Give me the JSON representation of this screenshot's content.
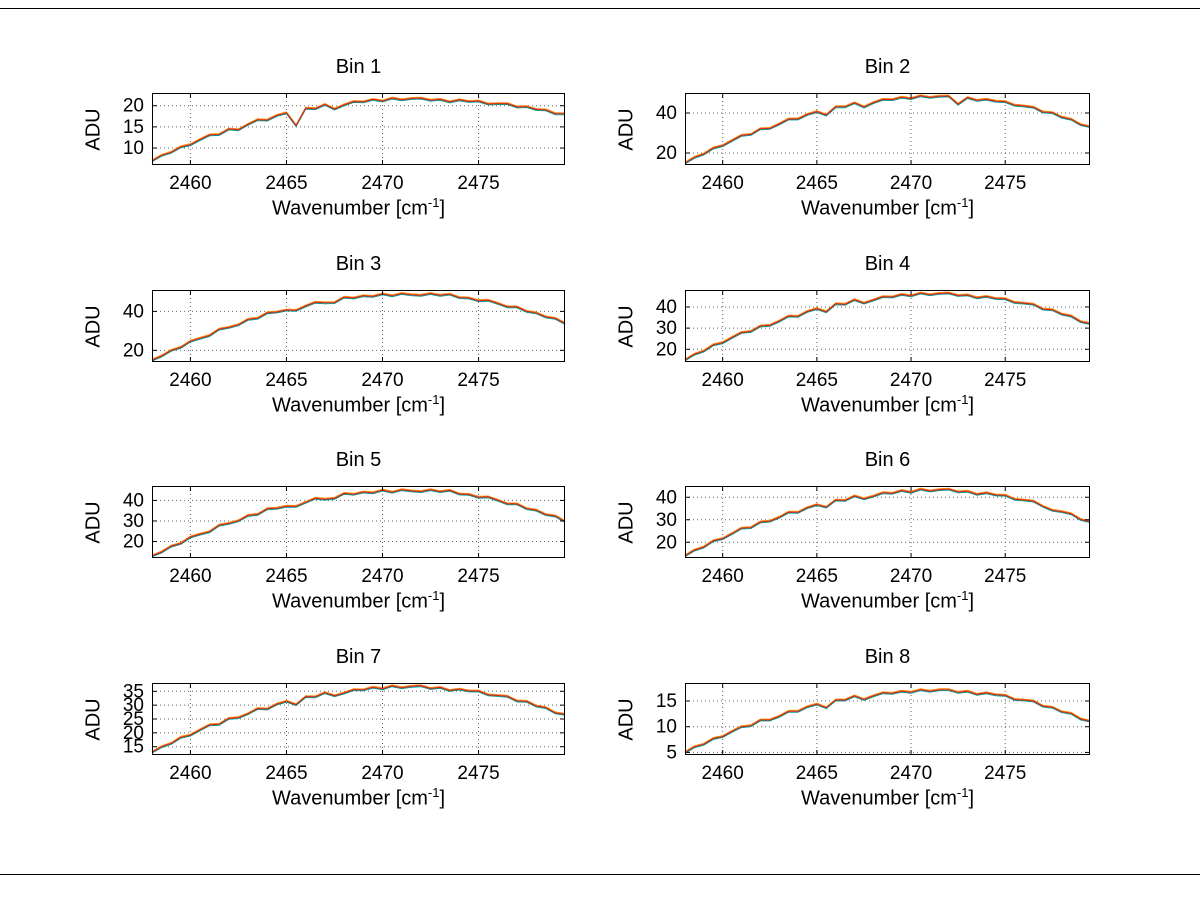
{
  "figure": {
    "background": "#ffffff",
    "border_color": "#000000"
  },
  "labels": {
    "ylabel": "ADU",
    "xlabel_main": "Wavenumber [cm",
    "xlabel_sup": "-1",
    "xlabel_close": "]"
  },
  "style": {
    "line_colors": [
      "#009988",
      "#ff8800",
      "#cc2222"
    ],
    "grid_color": "#666666",
    "axis_color": "#000000"
  },
  "chart_data": [
    {
      "type": "line",
      "title": "Bin 1",
      "xlabel": "Wavenumber [cm-1]",
      "ylabel": "ADU",
      "x_start": 2458,
      "x_step": 0.5,
      "xlim": [
        2458,
        2479.5
      ],
      "ylim": [
        6,
        23
      ],
      "xticks": [
        2460,
        2465,
        2470,
        2475
      ],
      "yticks": [
        10,
        15,
        20
      ],
      "grid": true,
      "legend": false,
      "values": [
        7.0,
        8.3,
        9.0,
        10.3,
        10.8,
        12.0,
        13.1,
        13.2,
        14.5,
        14.3,
        15.6,
        16.7,
        16.6,
        17.7,
        18.3,
        15.3,
        19.4,
        19.3,
        20.3,
        19.2,
        20.2,
        21.0,
        20.9,
        21.5,
        21.1,
        21.8,
        21.4,
        21.7,
        21.8,
        21.3,
        21.5,
        20.9,
        21.4,
        21.0,
        21.1,
        20.4,
        20.5,
        20.5,
        19.7,
        19.8,
        19.1,
        19.0,
        18.1,
        18.1
      ]
    },
    {
      "type": "line",
      "title": "Bin 2",
      "xlabel": "Wavenumber [cm-1]",
      "ylabel": "ADU",
      "x_start": 2458,
      "x_step": 0.5,
      "xlim": [
        2458,
        2479.5
      ],
      "ylim": [
        14,
        50
      ],
      "xticks": [
        2460,
        2465,
        2470,
        2475
      ],
      "yticks": [
        20,
        40
      ],
      "grid": true,
      "legend": false,
      "values": [
        15.0,
        17.8,
        19.5,
        22.5,
        23.7,
        26.3,
        28.8,
        29.3,
        32.1,
        32.3,
        34.5,
        37.0,
        37.0,
        39.3,
        40.7,
        39.0,
        43.1,
        43.1,
        45.1,
        43.0,
        45.2,
        46.8,
        46.7,
        47.9,
        47.2,
        48.6,
        47.8,
        48.4,
        48.5,
        44.4,
        47.7,
        46.3,
        46.9,
        45.9,
        45.7,
        43.9,
        43.5,
        42.9,
        40.5,
        40.2,
        37.9,
        36.9,
        34.2,
        33.2
      ]
    },
    {
      "type": "line",
      "title": "Bin 3",
      "xlabel": "Wavenumber [cm-1]",
      "ylabel": "ADU",
      "x_start": 2458,
      "x_step": 0.5,
      "xlim": [
        2458,
        2479.5
      ],
      "ylim": [
        14,
        51
      ],
      "xticks": [
        2460,
        2465,
        2470,
        2475
      ],
      "yticks": [
        20,
        40
      ],
      "grid": true,
      "legend": false,
      "values": [
        15.0,
        17.1,
        20.0,
        21.5,
        24.7,
        26.2,
        27.6,
        30.9,
        31.8,
        33.1,
        35.9,
        36.5,
        39.3,
        39.7,
        40.7,
        40.5,
        42.8,
        44.7,
        44.4,
        44.5,
        47.3,
        46.9,
        48.0,
        47.7,
        49.0,
        48.0,
        49.2,
        48.6,
        48.3,
        49.2,
        48.3,
        48.9,
        47.1,
        46.9,
        45.5,
        45.7,
        44.1,
        42.3,
        42.3,
        40.0,
        39.3,
        37.1,
        36.4,
        33.8
      ]
    },
    {
      "type": "line",
      "title": "Bin 4",
      "xlabel": "Wavenumber [cm-1]",
      "ylabel": "ADU",
      "x_start": 2458,
      "x_step": 0.5,
      "xlim": [
        2458,
        2479.5
      ],
      "ylim": [
        14,
        48
      ],
      "xticks": [
        2460,
        2465,
        2470,
        2475
      ],
      "yticks": [
        20,
        30,
        40
      ],
      "grid": true,
      "legend": false,
      "values": [
        15.0,
        17.7,
        19.2,
        22.1,
        23.1,
        25.6,
        28.0,
        28.4,
        31.0,
        31.3,
        33.3,
        35.7,
        35.6,
        37.9,
        39.2,
        37.7,
        41.5,
        41.3,
        43.4,
        41.8,
        43.3,
        44.9,
        44.7,
        45.9,
        45.2,
        46.6,
        45.8,
        46.4,
        46.6,
        45.4,
        45.7,
        44.3,
        45.0,
        44.0,
        43.9,
        42.1,
        41.8,
        41.3,
        39.0,
        38.7,
        36.6,
        35.7,
        33.1,
        32.2
      ]
    },
    {
      "type": "line",
      "title": "Bin 5",
      "xlabel": "Wavenumber [cm-1]",
      "ylabel": "ADU",
      "x_start": 2458,
      "x_step": 0.5,
      "xlim": [
        2458,
        2479.5
      ],
      "ylim": [
        12,
        47
      ],
      "xticks": [
        2460,
        2465,
        2470,
        2475
      ],
      "yticks": [
        20,
        30,
        40
      ],
      "grid": true,
      "legend": false,
      "values": [
        13.0,
        14.9,
        17.8,
        19.1,
        22.2,
        23.6,
        24.8,
        28.0,
        28.8,
        30.1,
        32.7,
        33.2,
        35.9,
        36.2,
        37.2,
        37.1,
        39.1,
        41.0,
        40.6,
        41.0,
        43.4,
        43.0,
        44.1,
        43.7,
        45.0,
        44.0,
        45.2,
        44.6,
        44.3,
        45.2,
        44.3,
        44.9,
        43.1,
        42.9,
        41.5,
        41.7,
        40.1,
        38.3,
        38.3,
        36.0,
        35.3,
        33.1,
        32.4,
        29.8
      ]
    },
    {
      "type": "line",
      "title": "Bin 6",
      "xlabel": "Wavenumber [cm-1]",
      "ylabel": "ADU",
      "x_start": 2458,
      "x_step": 0.5,
      "xlim": [
        2458,
        2479.5
      ],
      "ylim": [
        13,
        45
      ],
      "xticks": [
        2460,
        2465,
        2470,
        2475
      ],
      "yticks": [
        20,
        30,
        40
      ],
      "grid": true,
      "legend": false,
      "values": [
        14.0,
        16.5,
        17.9,
        20.7,
        21.6,
        23.9,
        26.3,
        26.5,
        29.0,
        29.4,
        31.1,
        33.4,
        33.3,
        35.4,
        36.7,
        35.6,
        38.8,
        38.6,
        40.6,
        39.3,
        40.5,
        42.0,
        41.8,
        43.0,
        42.2,
        43.6,
        42.8,
        43.4,
        43.6,
        42.4,
        42.7,
        41.3,
        42.0,
        41.0,
        40.9,
        39.1,
        38.8,
        38.3,
        36.0,
        34.2,
        33.6,
        32.7,
        30.1,
        29.2
      ]
    },
    {
      "type": "line",
      "title": "Bin 7",
      "xlabel": "Wavenumber [cm-1]",
      "ylabel": "ADU",
      "x_start": 2458,
      "x_step": 0.5,
      "xlim": [
        2458,
        2479.5
      ],
      "ylim": [
        12,
        38
      ],
      "xticks": [
        2460,
        2465,
        2470,
        2475
      ],
      "yticks": [
        15,
        20,
        25,
        30,
        35
      ],
      "grid": true,
      "legend": false,
      "values": [
        13.0,
        15.0,
        16.2,
        18.4,
        19.2,
        21.1,
        22.9,
        23.1,
        25.2,
        25.5,
        26.9,
        28.8,
        28.6,
        30.4,
        31.4,
        30.2,
        33.1,
        33.0,
        34.5,
        33.4,
        34.4,
        35.6,
        35.5,
        36.5,
        35.9,
        37.0,
        36.3,
        36.8,
        37.0,
        36.0,
        36.4,
        35.3,
        35.8,
        35.1,
        35.1,
        33.7,
        33.5,
        33.2,
        31.5,
        31.4,
        29.7,
        29.1,
        27.2,
        26.7
      ]
    },
    {
      "type": "line",
      "title": "Bin 8",
      "xlabel": "Wavenumber [cm-1]",
      "ylabel": "ADU",
      "x_start": 2458,
      "x_step": 0.5,
      "xlim": [
        2458,
        2479.5
      ],
      "ylim": [
        4.5,
        18.5
      ],
      "xticks": [
        2460,
        2465,
        2470,
        2475
      ],
      "yticks": [
        5,
        10,
        15
      ],
      "grid": true,
      "legend": false,
      "values": [
        5.0,
        6.1,
        6.6,
        7.7,
        8.1,
        9.1,
        10.0,
        10.2,
        11.3,
        11.3,
        12.0,
        13.0,
        13.0,
        13.9,
        14.4,
        13.7,
        15.2,
        15.2,
        16.0,
        15.3,
        16.0,
        16.6,
        16.5,
        16.9,
        16.7,
        17.2,
        16.9,
        17.2,
        17.2,
        16.7,
        16.9,
        16.3,
        16.6,
        16.2,
        16.1,
        15.3,
        15.2,
        15.0,
        14.0,
        13.8,
        12.9,
        12.6,
        11.5,
        11.1
      ]
    }
  ],
  "layout_note": "2x4 grid of MATLAB-style line subplots"
}
